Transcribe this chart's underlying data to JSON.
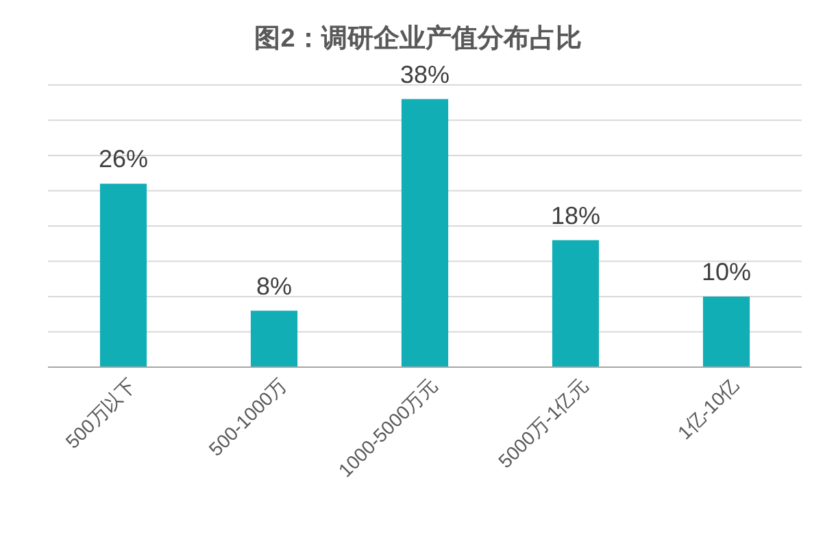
{
  "chart_data": {
    "type": "bar",
    "title": "图2：调研企业产值分布占比",
    "categories": [
      "500万以下",
      "500-1000万",
      "1000-5000万元",
      "5000万-1亿元",
      "1亿-10亿"
    ],
    "values": [
      26,
      8,
      38,
      18,
      10
    ],
    "value_labels": [
      "26%",
      "8%",
      "38%",
      "18%",
      "10%"
    ],
    "color": "#12aeb6",
    "ylim": [
      0,
      40
    ],
    "yticks": [
      {
        "value": 0,
        "label": null
      },
      {
        "value": 5,
        "label": null
      },
      {
        "value": 10,
        "label": null
      },
      {
        "value": 15,
        "label": null
      },
      {
        "value": 20,
        "label": null
      },
      {
        "value": 25,
        "label": null
      },
      {
        "value": 30,
        "label": null
      },
      {
        "value": 35,
        "label": null
      },
      {
        "value": 40,
        "label": null
      }
    ],
    "grid": "y"
  }
}
